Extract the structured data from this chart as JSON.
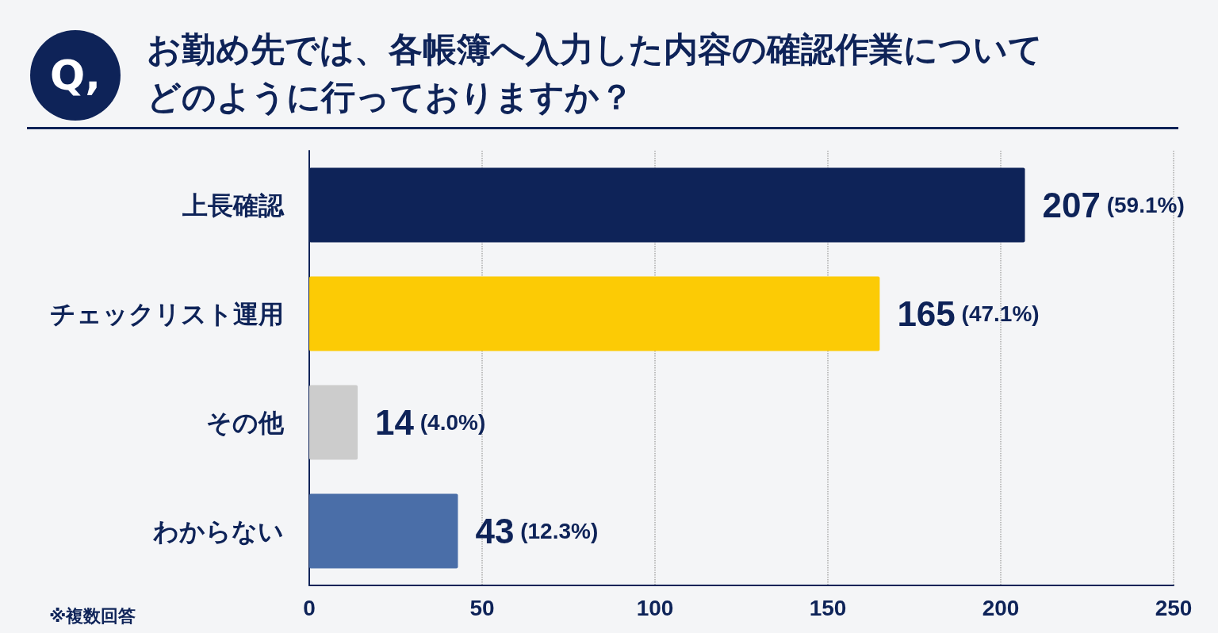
{
  "chart_data": {
    "type": "bar",
    "orientation": "horizontal",
    "title": "お勤め先では、各帳簿へ入力した内容の確認作業についてどのように行っておりますか？",
    "categories": [
      "上長確認",
      "チェックリスト運用",
      "その他",
      "わからない"
    ],
    "values": [
      207,
      165,
      14,
      43
    ],
    "colors": [
      "#0e2358",
      "#fccb05",
      "#cccccc",
      "#4a6ea8"
    ],
    "value_labels": [
      "207 (59.1%)",
      "165 (47.1%)",
      "14 (4.0%)",
      "43 (12.3%)"
    ],
    "xlim": [
      0,
      250
    ],
    "xticks": [
      0,
      50,
      100,
      150,
      200,
      250
    ],
    "grid": "x",
    "annotations": [
      "Q,",
      "※複数回答"
    ]
  }
}
